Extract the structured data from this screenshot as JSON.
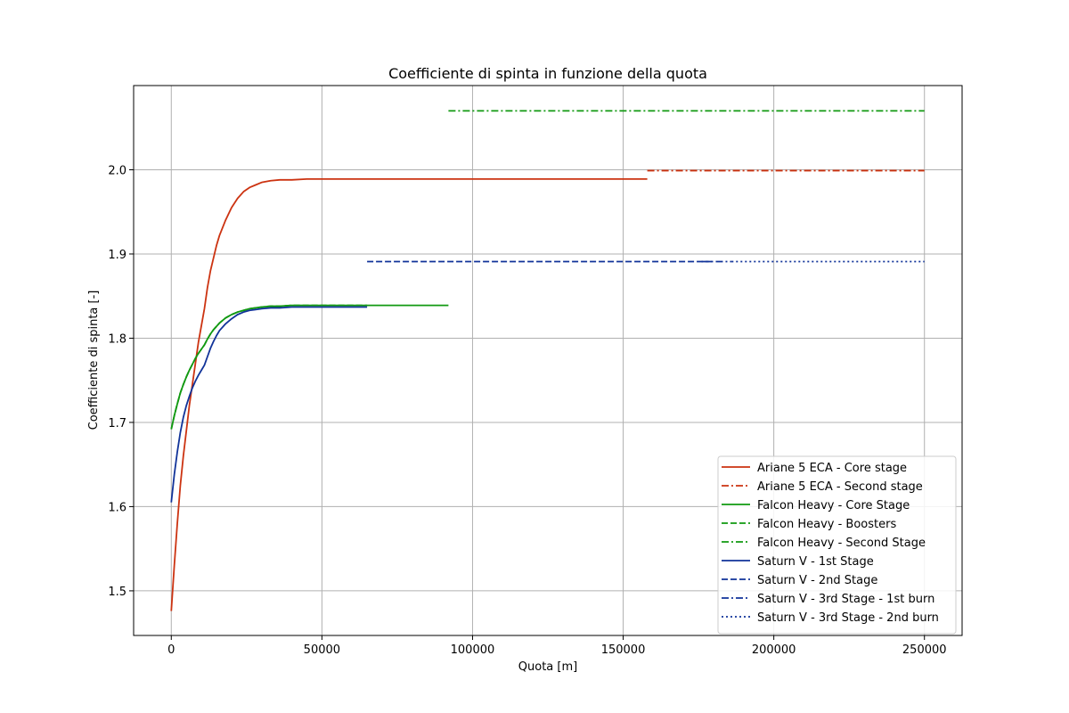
{
  "chart_data": {
    "type": "line",
    "title": "Coefficiente di spinta in funzione della quota",
    "xlabel": "Quota [m]",
    "ylabel": "Coefficiente di spinta [-]",
    "xlim": [
      -12500,
      262500
    ],
    "ylim": [
      1.447,
      2.1
    ],
    "xticks": [
      0,
      50000,
      100000,
      150000,
      200000,
      250000
    ],
    "xtick_labels": [
      "0",
      "50000",
      "100000",
      "150000",
      "200000",
      "250000"
    ],
    "yticks": [
      1.5,
      1.6,
      1.7,
      1.8,
      1.9,
      2.0
    ],
    "ytick_labels": [
      "1.5",
      "1.6",
      "1.7",
      "1.8",
      "1.9",
      "2.0"
    ],
    "grid": true,
    "legend_position": "lower-right",
    "series": [
      {
        "name": "Ariane 5 ECA - Core stage",
        "color": "#cc3311",
        "dash": "solid",
        "x": [
          0,
          1000,
          2000,
          3000,
          4000,
          5000,
          6000,
          7000,
          8000,
          9000,
          10000,
          11000,
          12000,
          13000,
          14000,
          15000,
          16000,
          18000,
          20000,
          22000,
          24000,
          26000,
          28000,
          30000,
          33000,
          36000,
          40000,
          45000,
          50000,
          60000,
          80000,
          100000,
          120000,
          140000,
          158000
        ],
        "y": [
          1.476,
          1.53,
          1.58,
          1.625,
          1.66,
          1.69,
          1.72,
          1.745,
          1.77,
          1.795,
          1.815,
          1.835,
          1.86,
          1.88,
          1.895,
          1.91,
          1.922,
          1.94,
          1.955,
          1.966,
          1.974,
          1.979,
          1.982,
          1.985,
          1.987,
          1.988,
          1.988,
          1.989,
          1.989,
          1.989,
          1.989,
          1.989,
          1.989,
          1.989,
          1.989
        ]
      },
      {
        "name": "Ariane 5 ECA - Second stage",
        "color": "#cc3311",
        "dash": "dashdot",
        "x": [
          158000,
          250000
        ],
        "y": [
          1.999,
          1.999
        ]
      },
      {
        "name": "Falcon Heavy - Core Stage",
        "color": "#119911",
        "dash": "solid",
        "x": [
          0,
          1000,
          2000,
          3000,
          4000,
          5000,
          6000,
          7000,
          8000,
          9000,
          10000,
          11000,
          12000,
          13000,
          14000,
          15000,
          16000,
          18000,
          20000,
          22000,
          24000,
          26000,
          28000,
          30000,
          33000,
          36000,
          40000,
          45000,
          50000,
          60000,
          70000,
          80000,
          92000
        ],
        "y": [
          1.692,
          1.708,
          1.722,
          1.735,
          1.745,
          1.754,
          1.762,
          1.769,
          1.776,
          1.782,
          1.787,
          1.792,
          1.799,
          1.805,
          1.81,
          1.814,
          1.818,
          1.824,
          1.828,
          1.831,
          1.833,
          1.835,
          1.836,
          1.837,
          1.838,
          1.838,
          1.839,
          1.839,
          1.839,
          1.839,
          1.839,
          1.839,
          1.839
        ]
      },
      {
        "name": "Falcon Heavy - Boosters",
        "color": "#119911",
        "dash": "dashed",
        "x": [
          0,
          1000,
          2000,
          3000,
          4000,
          5000,
          6000,
          7000,
          8000,
          9000,
          10000,
          11000,
          12000,
          13000,
          14000,
          15000,
          16000,
          18000,
          20000,
          22000,
          24000,
          26000,
          28000,
          30000,
          33000,
          36000,
          40000,
          45000,
          50000,
          60000,
          65000
        ],
        "y": [
          1.692,
          1.708,
          1.722,
          1.735,
          1.745,
          1.754,
          1.762,
          1.769,
          1.776,
          1.782,
          1.787,
          1.792,
          1.799,
          1.805,
          1.81,
          1.814,
          1.818,
          1.824,
          1.828,
          1.831,
          1.833,
          1.835,
          1.836,
          1.837,
          1.838,
          1.838,
          1.839,
          1.839,
          1.839,
          1.839,
          1.839
        ]
      },
      {
        "name": "Falcon Heavy - Second Stage",
        "color": "#119911",
        "dash": "dashdot",
        "x": [
          92000,
          250000
        ],
        "y": [
          2.07,
          2.07
        ]
      },
      {
        "name": "Saturn V - 1st Stage",
        "color": "#113399",
        "dash": "solid",
        "x": [
          0,
          1000,
          2000,
          3000,
          4000,
          5000,
          6000,
          7000,
          8000,
          9000,
          10000,
          11000,
          12000,
          13000,
          14000,
          15000,
          16000,
          18000,
          20000,
          22000,
          24000,
          26000,
          28000,
          30000,
          33000,
          36000,
          40000,
          45000,
          50000,
          55000,
          60000,
          65000
        ],
        "y": [
          1.605,
          1.638,
          1.665,
          1.688,
          1.706,
          1.72,
          1.731,
          1.741,
          1.749,
          1.756,
          1.762,
          1.768,
          1.778,
          1.788,
          1.796,
          1.803,
          1.809,
          1.817,
          1.823,
          1.828,
          1.831,
          1.833,
          1.834,
          1.835,
          1.836,
          1.836,
          1.837,
          1.837,
          1.837,
          1.837,
          1.837,
          1.837
        ]
      },
      {
        "name": "Saturn V - 2nd Stage",
        "color": "#113399",
        "dash": "dashed",
        "x": [
          65000,
          180000
        ],
        "y": [
          1.891,
          1.891
        ]
      },
      {
        "name": "Saturn V - 3rd Stage - 1st burn",
        "color": "#113399",
        "dash": "dashdot",
        "x": [
          176000,
          186000
        ],
        "y": [
          1.891,
          1.891
        ]
      },
      {
        "name": "Saturn V - 3rd Stage - 2nd burn",
        "color": "#113399",
        "dash": "dotted",
        "x": [
          186000,
          250000
        ],
        "y": [
          1.891,
          1.891
        ]
      }
    ]
  }
}
